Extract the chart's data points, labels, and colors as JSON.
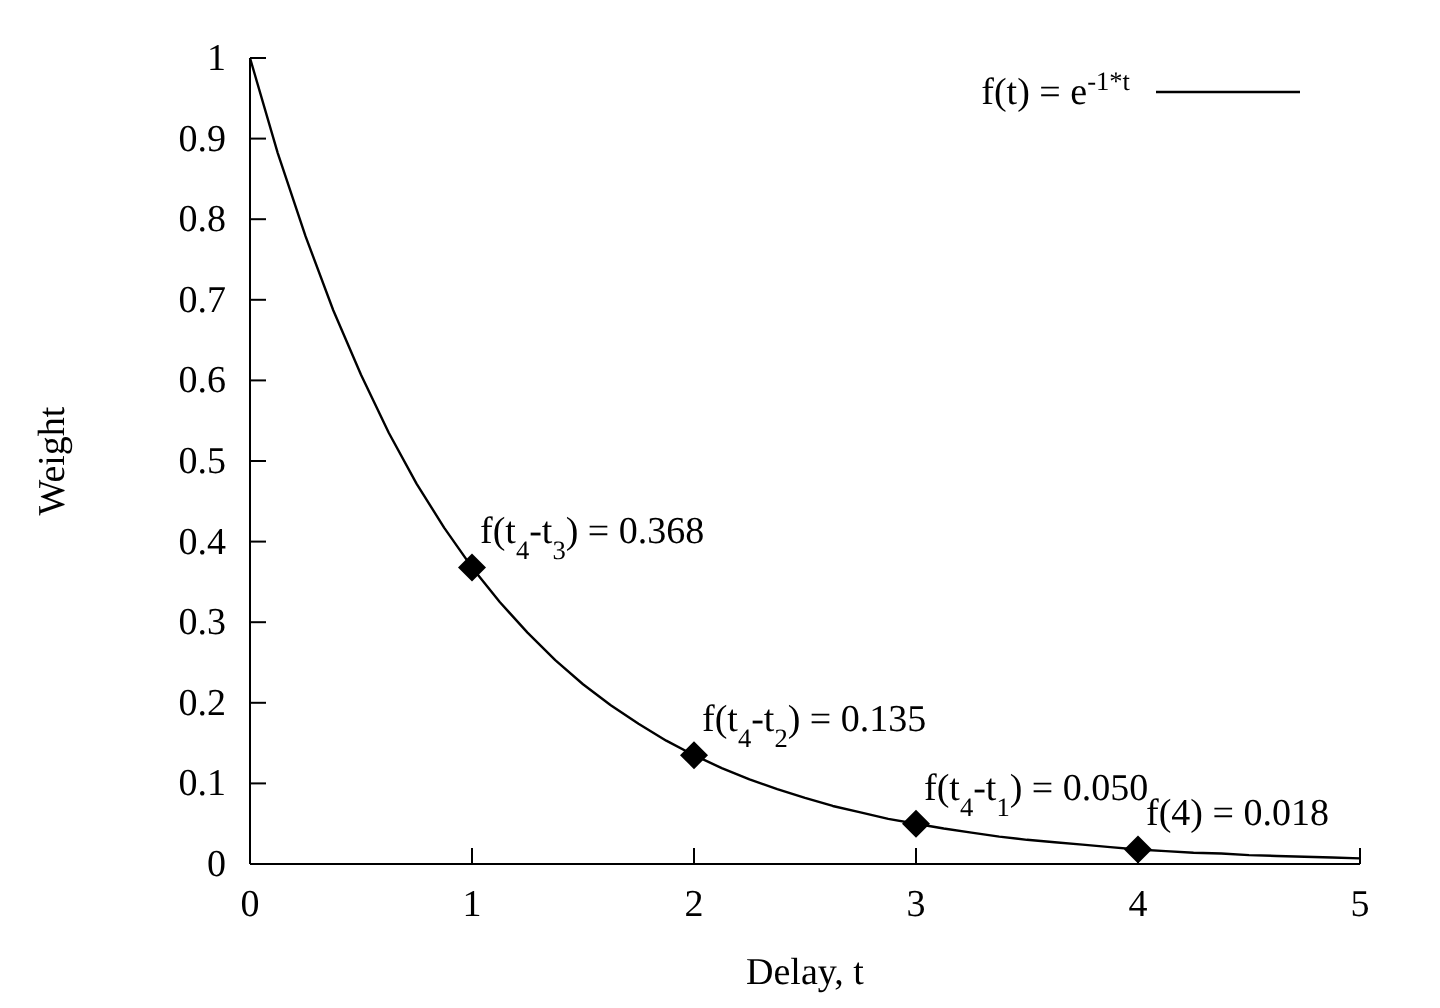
{
  "chart_data": {
    "type": "line",
    "xlabel": "Delay, t",
    "ylabel": "Weight",
    "xlim": [
      0,
      5
    ],
    "xticks": [
      0,
      1,
      2,
      3,
      4,
      5
    ],
    "ylim": [
      0,
      1
    ],
    "yticks": [
      0,
      0.1,
      0.2,
      0.3,
      0.4,
      0.5,
      0.6,
      0.7,
      0.8,
      0.9,
      1
    ],
    "grid": false,
    "legend": "top right",
    "series": [
      {
        "name": "f(t) = e$^{-1*t}$",
        "color": "#000000",
        "marker": "none",
        "line_style": "solid",
        "x": [
          0,
          0.125,
          0.25,
          0.375,
          0.5,
          0.625,
          0.75,
          0.875,
          1,
          1.125,
          1.25,
          1.375,
          1.5,
          1.625,
          1.75,
          1.875,
          2,
          2.125,
          2.25,
          2.375,
          2.5,
          2.625,
          2.75,
          2.875,
          3,
          3.125,
          3.25,
          3.375,
          3.5,
          3.625,
          3.75,
          3.875,
          4,
          4.125,
          4.25,
          4.375,
          4.5,
          4.625,
          4.75,
          4.875,
          5
        ],
        "values": [
          1,
          0.882,
          0.779,
          0.687,
          0.607,
          0.535,
          0.472,
          0.417,
          0.368,
          0.325,
          0.287,
          0.253,
          0.223,
          0.197,
          0.174,
          0.153,
          0.135,
          0.119,
          0.105,
          0.093,
          0.082,
          0.072,
          0.064,
          0.056,
          0.05,
          0.044,
          0.039,
          0.034,
          0.03,
          0.027,
          0.024,
          0.021,
          0.018,
          0.016,
          0.014,
          0.013,
          0.011,
          0.01,
          0.009,
          0.008,
          0.007
        ]
      },
      {
        "type": "scatter",
        "color": "#000000",
        "marker": "diamond",
        "x": [
          1,
          2,
          3,
          4
        ],
        "values": [
          0.368,
          0.135,
          0.05,
          0.018
        ]
      }
    ],
    "annotations": [
      {
        "text": "f(t$_{4}$-t$_{3}$) = 0.368",
        "x": 1,
        "y": 0.368
      },
      {
        "text": "f(t$_{4}$-t$_{2}$) = 0.135",
        "x": 2,
        "y": 0.135
      },
      {
        "text": "f(t$_{4}$-t$_{1}$) = 0.050",
        "x": 3,
        "y": 0.05
      },
      {
        "text": "f(4) = 0.018",
        "x": 4,
        "y": 0.018
      }
    ]
  }
}
